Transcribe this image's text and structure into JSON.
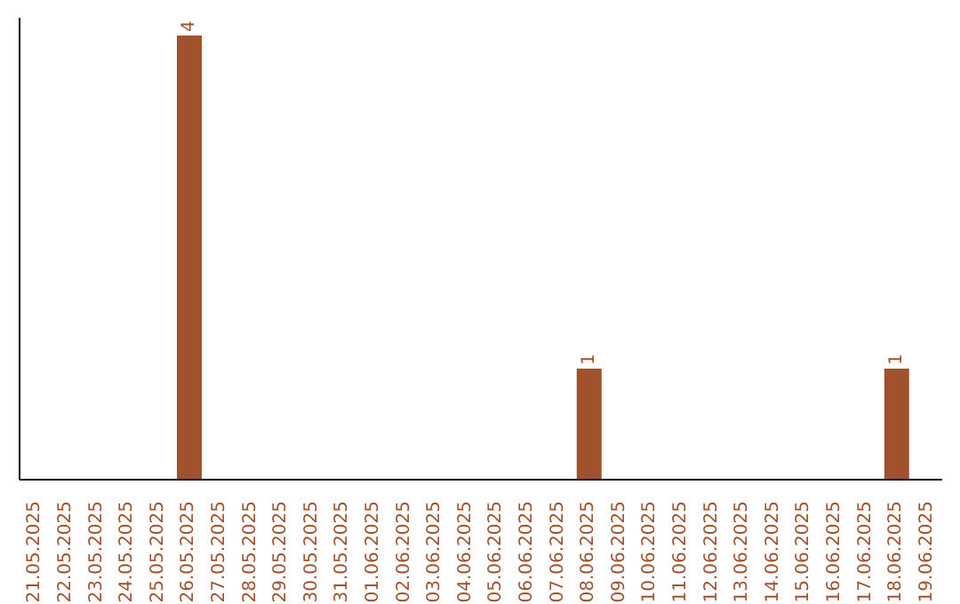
{
  "chart_data": {
    "type": "bar",
    "categories": [
      "21.05.2025",
      "22.05.2025",
      "23.05.2025",
      "24.05.2025",
      "25.05.2025",
      "26.05.2025",
      "27.05.2025",
      "28.05.2025",
      "29.05.2025",
      "30.05.2025",
      "31.05.2025",
      "01.06.2025",
      "02.06.2025",
      "03.06.2025",
      "04.06.2025",
      "05.06.2025",
      "06.06.2025",
      "07.06.2025",
      "08.06.2025",
      "09.06.2025",
      "10.06.2025",
      "11.06.2025",
      "12.06.2025",
      "13.06.2025",
      "14.06.2025",
      "15.06.2025",
      "16.06.2025",
      "17.06.2025",
      "18.06.2025",
      "19.06.2025"
    ],
    "values": [
      0,
      0,
      0,
      0,
      0,
      4,
      0,
      0,
      0,
      0,
      0,
      0,
      0,
      0,
      0,
      0,
      0,
      0,
      1,
      0,
      0,
      0,
      0,
      0,
      0,
      0,
      0,
      0,
      1,
      0
    ],
    "value_labels": [
      null,
      null,
      null,
      null,
      null,
      "4",
      null,
      null,
      null,
      null,
      null,
      null,
      null,
      null,
      null,
      null,
      null,
      null,
      "1",
      null,
      null,
      null,
      null,
      null,
      null,
      null,
      null,
      null,
      "1",
      null
    ],
    "color": "#a0522d"
  }
}
